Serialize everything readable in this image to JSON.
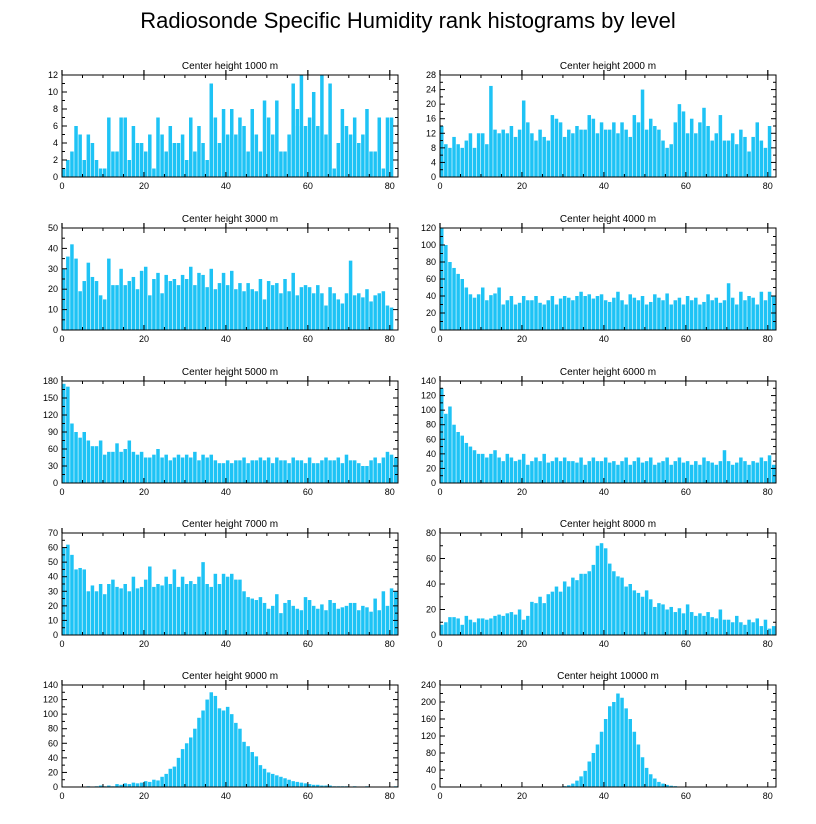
{
  "title": "Radiosonde Specific Humidity rank histograms by level",
  "bar_color": "#1ec3f5",
  "chart_data": [
    {
      "type": "bar",
      "title": "Center height 1000 m",
      "xlim": [
        0,
        82
      ],
      "ylim": [
        0,
        12
      ],
      "xticks": [
        0,
        20,
        40,
        60,
        80
      ],
      "yticks": [
        0,
        2,
        4,
        6,
        8,
        10,
        12
      ],
      "x": [
        1,
        2,
        3,
        4,
        5,
        6,
        7,
        8,
        9,
        10,
        11,
        12,
        13,
        14,
        15,
        16,
        17,
        18,
        19,
        20,
        21,
        22,
        23,
        24,
        25,
        26,
        27,
        28,
        29,
        30,
        31,
        32,
        33,
        34,
        35,
        36,
        37,
        38,
        39,
        40,
        41,
        42,
        43,
        44,
        45,
        46,
        47,
        48,
        49,
        50,
        51,
        52,
        53,
        54,
        55,
        56,
        57,
        58,
        58,
        59,
        60,
        61,
        62,
        63,
        64,
        65,
        66,
        67,
        68,
        69,
        70,
        71,
        72,
        73,
        74,
        75,
        76,
        77,
        78,
        79,
        80,
        81
      ],
      "values": [
        1,
        2,
        3,
        6,
        5,
        2,
        5,
        4,
        2,
        1,
        1,
        7,
        3,
        3,
        7,
        7,
        2,
        6,
        4,
        4,
        3,
        5,
        1,
        7,
        5,
        3,
        6,
        4,
        4,
        5,
        2,
        7,
        3,
        6,
        4,
        2,
        11,
        7,
        4,
        8,
        5,
        8,
        5,
        7,
        6,
        3,
        8,
        5,
        3,
        9,
        7,
        5,
        9,
        3,
        3,
        5,
        11,
        6,
        8,
        12,
        6,
        7,
        10,
        6,
        12,
        5,
        11,
        1,
        4,
        8,
        6,
        5,
        7,
        4,
        5,
        8,
        3,
        3,
        7,
        1,
        7,
        7
      ]
    },
    {
      "type": "bar",
      "title": "Center height 2000 m",
      "xlim": [
        0,
        82
      ],
      "ylim": [
        0,
        28
      ],
      "xticks": [
        0,
        20,
        40,
        60,
        80
      ],
      "yticks": [
        0,
        4,
        8,
        12,
        16,
        20,
        24,
        28
      ],
      "x": [
        1,
        2,
        3,
        4,
        5,
        6,
        7,
        8,
        9,
        10,
        11,
        12,
        13,
        14,
        15,
        16,
        17,
        18,
        19,
        20,
        21,
        22,
        23,
        24,
        25,
        26,
        27,
        28,
        29,
        30,
        31,
        32,
        33,
        34,
        35,
        36,
        37,
        38,
        39,
        40,
        41,
        42,
        43,
        44,
        45,
        46,
        47,
        48,
        49,
        50,
        51,
        52,
        53,
        54,
        55,
        56,
        57,
        58,
        59,
        60,
        61,
        62,
        63,
        64,
        65,
        66,
        67,
        68,
        69,
        70,
        71,
        72,
        73,
        74,
        75,
        76,
        77,
        78,
        79,
        80,
        81
      ],
      "values": [
        14,
        9,
        8,
        11,
        9,
        8,
        10,
        12,
        8,
        12,
        12,
        9,
        25,
        13,
        12,
        13,
        12,
        14,
        11,
        13,
        21,
        15,
        12,
        10,
        13,
        11,
        10,
        17,
        16,
        15,
        11,
        13,
        12,
        14,
        13,
        13,
        17,
        16,
        12,
        15,
        13,
        13,
        15,
        12,
        15,
        13,
        11,
        17,
        15,
        24,
        13,
        16,
        14,
        13,
        10,
        8,
        9,
        15,
        20,
        18,
        12,
        16,
        12,
        15,
        19,
        14,
        10,
        12,
        17,
        10,
        10,
        12,
        9,
        13,
        11,
        7,
        11,
        15,
        10,
        8,
        14
      ]
    },
    {
      "type": "bar",
      "title": "Center height 3000 m",
      "xlim": [
        0,
        82
      ],
      "ylim": [
        0,
        50
      ],
      "xticks": [
        0,
        20,
        40,
        60,
        80
      ],
      "yticks": [
        0,
        10,
        20,
        30,
        40,
        50
      ],
      "values": [
        30,
        36,
        42,
        35,
        19,
        24,
        33,
        26,
        24,
        17,
        15,
        35,
        22,
        22,
        30,
        22,
        24,
        26,
        20,
        29,
        31,
        17,
        25,
        28,
        18,
        27,
        24,
        25,
        22,
        27,
        25,
        31,
        22,
        28,
        27,
        21,
        30,
        20,
        23,
        28,
        22,
        29,
        20,
        23,
        19,
        23,
        20,
        19,
        25,
        15,
        24,
        22,
        23,
        18,
        25,
        19,
        28,
        17,
        21,
        22,
        21,
        18,
        22,
        18,
        12,
        21,
        18,
        15,
        13,
        18,
        34,
        17,
        18,
        16,
        20,
        14,
        17,
        18,
        19,
        12,
        11
      ]
    },
    {
      "type": "bar",
      "title": "Center height 4000 m",
      "xlim": [
        0,
        82
      ],
      "ylim": [
        0,
        120
      ],
      "xticks": [
        0,
        20,
        40,
        60,
        80
      ],
      "yticks": [
        0,
        20,
        40,
        60,
        80,
        100,
        120
      ],
      "values": [
        120,
        100,
        80,
        73,
        66,
        60,
        50,
        42,
        38,
        42,
        50,
        35,
        41,
        43,
        50,
        30,
        35,
        40,
        30,
        32,
        40,
        35,
        35,
        40,
        32,
        30,
        35,
        40,
        30,
        37,
        40,
        38,
        35,
        40,
        45,
        40,
        42,
        37,
        40,
        42,
        35,
        33,
        38,
        45,
        35,
        30,
        42,
        38,
        35,
        40,
        30,
        33,
        42,
        38,
        35,
        43,
        30,
        35,
        38,
        30,
        40,
        35,
        38,
        30,
        33,
        42,
        35,
        38,
        32,
        35,
        55,
        38,
        30,
        45,
        35,
        40,
        38,
        30,
        45,
        35,
        45,
        40
      ]
    },
    {
      "type": "bar",
      "title": "Center height 5000 m",
      "xlim": [
        0,
        82
      ],
      "ylim": [
        0,
        180
      ],
      "xticks": [
        0,
        20,
        40,
        60,
        80
      ],
      "yticks": [
        0,
        30,
        60,
        90,
        120,
        150,
        180
      ],
      "values": [
        175,
        170,
        105,
        90,
        80,
        90,
        75,
        65,
        65,
        75,
        50,
        55,
        55,
        70,
        55,
        60,
        75,
        55,
        50,
        55,
        45,
        45,
        50,
        60,
        45,
        50,
        40,
        45,
        50,
        45,
        50,
        45,
        55,
        40,
        50,
        45,
        50,
        40,
        35,
        35,
        40,
        35,
        40,
        40,
        45,
        35,
        40,
        40,
        45,
        40,
        45,
        35,
        45,
        40,
        40,
        35,
        45,
        40,
        40,
        35,
        45,
        35,
        35,
        40,
        45,
        40,
        40,
        45,
        35,
        50,
        40,
        40,
        35,
        30,
        30,
        40,
        45,
        35,
        45,
        55,
        50,
        45
      ]
    },
    {
      "type": "bar",
      "title": "Center height 6000 m",
      "xlim": [
        0,
        82
      ],
      "ylim": [
        0,
        140
      ],
      "xticks": [
        0,
        20,
        40,
        60,
        80
      ],
      "yticks": [
        0,
        20,
        40,
        60,
        80,
        100,
        120,
        140
      ],
      "values": [
        130,
        95,
        105,
        80,
        70,
        65,
        55,
        50,
        45,
        40,
        40,
        35,
        40,
        45,
        35,
        30,
        40,
        35,
        30,
        32,
        40,
        25,
        30,
        35,
        30,
        40,
        28,
        30,
        35,
        30,
        35,
        30,
        30,
        28,
        35,
        25,
        30,
        35,
        30,
        30,
        35,
        28,
        30,
        25,
        30,
        35,
        25,
        30,
        35,
        28,
        30,
        35,
        25,
        28,
        30,
        35,
        25,
        30,
        35,
        28,
        30,
        25,
        30,
        25,
        35,
        30,
        28,
        25,
        30,
        45,
        30,
        25,
        28,
        35,
        30,
        25,
        30,
        28,
        35,
        30,
        38,
        25
      ]
    },
    {
      "type": "bar",
      "title": "Center height 7000 m",
      "xlim": [
        0,
        82
      ],
      "ylim": [
        0,
        70
      ],
      "xticks": [
        0,
        20,
        40,
        60,
        80
      ],
      "yticks": [
        0,
        10,
        20,
        30,
        40,
        50,
        60,
        70
      ],
      "values": [
        60,
        62,
        55,
        45,
        46,
        45,
        30,
        34,
        30,
        35,
        28,
        35,
        38,
        33,
        32,
        35,
        30,
        40,
        32,
        33,
        38,
        47,
        33,
        35,
        34,
        40,
        35,
        45,
        33,
        40,
        35,
        37,
        35,
        40,
        50,
        35,
        33,
        42,
        35,
        42,
        40,
        42,
        38,
        38,
        30,
        26,
        25,
        24,
        26,
        22,
        18,
        20,
        28,
        15,
        22,
        24,
        20,
        18,
        17,
        26,
        24,
        20,
        18,
        21,
        17,
        24,
        22,
        18,
        19,
        20,
        22,
        22,
        17,
        20,
        19,
        16,
        25,
        17,
        30,
        20,
        32,
        30
      ]
    },
    {
      "type": "bar",
      "title": "Center height 8000 m",
      "xlim": [
        0,
        82
      ],
      "ylim": [
        0,
        80
      ],
      "xticks": [
        0,
        20,
        40,
        60,
        80
      ],
      "yticks": [
        0,
        20,
        40,
        60,
        80
      ],
      "values": [
        8,
        10,
        14,
        14,
        13,
        8,
        15,
        12,
        10,
        13,
        13,
        12,
        13,
        15,
        16,
        15,
        17,
        18,
        16,
        20,
        12,
        15,
        26,
        25,
        30,
        25,
        32,
        34,
        38,
        34,
        42,
        38,
        45,
        43,
        48,
        48,
        50,
        55,
        70,
        72,
        68,
        56,
        50,
        46,
        45,
        38,
        40,
        35,
        33,
        30,
        35,
        28,
        22,
        25,
        24,
        20,
        22,
        18,
        21,
        17,
        24,
        18,
        15,
        17,
        15,
        18,
        14,
        13,
        20,
        12,
        12,
        10,
        15,
        10,
        8,
        12,
        10,
        13,
        7,
        12,
        5,
        7
      ]
    },
    {
      "type": "bar",
      "title": "Center height 9000 m",
      "xlim": [
        0,
        82
      ],
      "ylim": [
        0,
        140
      ],
      "xticks": [
        0,
        20,
        40,
        60,
        80
      ],
      "yticks": [
        0,
        20,
        40,
        60,
        80,
        100,
        120,
        140
      ],
      "values": [
        0,
        0,
        0,
        0,
        0,
        0,
        1,
        0,
        1,
        2,
        1,
        2,
        1,
        4,
        3,
        5,
        4,
        6,
        5,
        6,
        8,
        7,
        10,
        9,
        14,
        18,
        25,
        28,
        40,
        52,
        60,
        68,
        80,
        95,
        105,
        120,
        130,
        125,
        108,
        105,
        110,
        100,
        88,
        80,
        62,
        56,
        48,
        42,
        30,
        25,
        20,
        18,
        16,
        14,
        12,
        10,
        8,
        7,
        6,
        5,
        4,
        3,
        3,
        2,
        2,
        2,
        1,
        1,
        1,
        1,
        0,
        1,
        0,
        0,
        1,
        0,
        0,
        0,
        0,
        0,
        0,
        1
      ]
    },
    {
      "type": "bar",
      "title": "Center height 10000 m",
      "xlim": [
        0,
        82
      ],
      "ylim": [
        0,
        240
      ],
      "xticks": [
        0,
        20,
        40,
        60,
        80
      ],
      "yticks": [
        0,
        40,
        80,
        120,
        160,
        200,
        240
      ],
      "values": [
        0,
        0,
        0,
        0,
        0,
        0,
        0,
        0,
        0,
        0,
        0,
        0,
        0,
        0,
        0,
        0,
        0,
        0,
        0,
        0,
        0,
        0,
        0,
        0,
        0,
        0,
        0,
        0,
        0,
        1,
        2,
        4,
        8,
        15,
        25,
        38,
        60,
        80,
        100,
        130,
        160,
        190,
        200,
        220,
        210,
        185,
        160,
        130,
        100,
        70,
        45,
        30,
        20,
        12,
        8,
        5,
        3,
        2,
        1,
        1,
        0,
        0,
        0,
        0,
        0,
        0,
        0,
        0,
        0,
        0,
        0,
        0,
        0,
        0,
        0,
        0,
        0,
        0,
        0,
        0,
        0,
        0
      ]
    }
  ]
}
